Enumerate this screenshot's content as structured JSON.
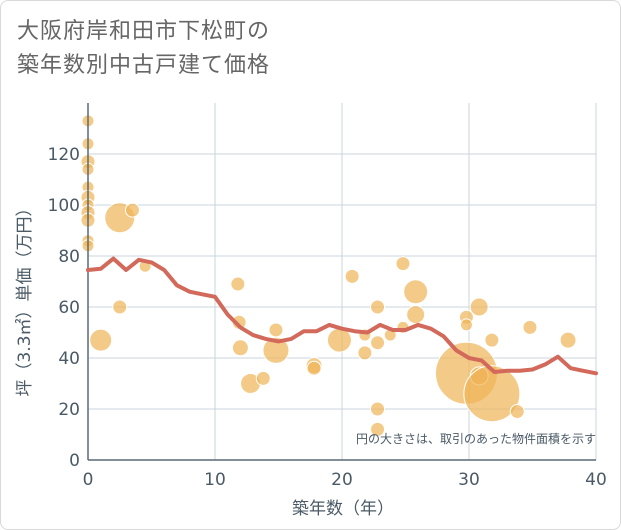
{
  "title_lines": [
    "大阪府岸和田市下松町の",
    "築年数別中古戸建て価格"
  ],
  "chart_data": {
    "type": "scatter",
    "xlabel": "築年数（年）",
    "ylabel": "坪（3.3㎡）単価（万円）",
    "xlim": [
      0,
      40
    ],
    "ylim": [
      0,
      140
    ],
    "xticks": [
      0,
      10,
      20,
      30,
      40
    ],
    "yticks": [
      0,
      20,
      40,
      60,
      80,
      100,
      120
    ],
    "grid": true,
    "note": "円の大きさは、取引のあった物件面積を示す",
    "colors": {
      "bubble": "#f0b455",
      "bubble_fill_opacity": 0.7,
      "line": "#d2695a",
      "grid": "#c8d4dc",
      "axis_text": "#4a5a66"
    },
    "series": [
      {
        "type": "bubble",
        "points": [
          {
            "x": 0,
            "y": 133,
            "r": 6
          },
          {
            "x": 0,
            "y": 124,
            "r": 6
          },
          {
            "x": 0,
            "y": 117,
            "r": 7
          },
          {
            "x": 0,
            "y": 114,
            "r": 6
          },
          {
            "x": 0,
            "y": 107,
            "r": 6
          },
          {
            "x": 0,
            "y": 103,
            "r": 7
          },
          {
            "x": 0,
            "y": 100,
            "r": 6
          },
          {
            "x": 0,
            "y": 97,
            "r": 7
          },
          {
            "x": 0,
            "y": 94,
            "r": 7
          },
          {
            "x": 0,
            "y": 86,
            "r": 6
          },
          {
            "x": 0,
            "y": 84,
            "r": 6
          },
          {
            "x": 1,
            "y": 47,
            "r": 11
          },
          {
            "x": 2.5,
            "y": 95,
            "r": 15
          },
          {
            "x": 3.5,
            "y": 98,
            "r": 7
          },
          {
            "x": 2.5,
            "y": 60,
            "r": 7
          },
          {
            "x": 4.5,
            "y": 76,
            "r": 6
          },
          {
            "x": 11.8,
            "y": 69,
            "r": 7
          },
          {
            "x": 11.9,
            "y": 54,
            "r": 7
          },
          {
            "x": 12,
            "y": 44,
            "r": 8
          },
          {
            "x": 12.8,
            "y": 30,
            "r": 10
          },
          {
            "x": 13.8,
            "y": 32,
            "r": 7
          },
          {
            "x": 14.8,
            "y": 51,
            "r": 7
          },
          {
            "x": 14.8,
            "y": 43,
            "r": 13
          },
          {
            "x": 17.8,
            "y": 37,
            "r": 8
          },
          {
            "x": 17.8,
            "y": 36,
            "r": 7
          },
          {
            "x": 19.8,
            "y": 47,
            "r": 12
          },
          {
            "x": 20.8,
            "y": 72,
            "r": 7
          },
          {
            "x": 21.8,
            "y": 49,
            "r": 6
          },
          {
            "x": 21.8,
            "y": 42,
            "r": 7
          },
          {
            "x": 22.8,
            "y": 60,
            "r": 7
          },
          {
            "x": 22.8,
            "y": 46,
            "r": 7
          },
          {
            "x": 22.8,
            "y": 20,
            "r": 7
          },
          {
            "x": 22.8,
            "y": 12,
            "r": 7
          },
          {
            "x": 23.8,
            "y": 49,
            "r": 6
          },
          {
            "x": 24.8,
            "y": 77,
            "r": 7
          },
          {
            "x": 24.8,
            "y": 52,
            "r": 6
          },
          {
            "x": 25.8,
            "y": 66,
            "r": 12
          },
          {
            "x": 25.8,
            "y": 57,
            "r": 9
          },
          {
            "x": 29.8,
            "y": 56,
            "r": 7
          },
          {
            "x": 29.8,
            "y": 53,
            "r": 6
          },
          {
            "x": 29.8,
            "y": 34,
            "r": 31
          },
          {
            "x": 30.8,
            "y": 60,
            "r": 9
          },
          {
            "x": 30.8,
            "y": 33,
            "r": 9
          },
          {
            "x": 31.8,
            "y": 47,
            "r": 7
          },
          {
            "x": 31.8,
            "y": 26,
            "r": 28
          },
          {
            "x": 33.8,
            "y": 19,
            "r": 7
          },
          {
            "x": 34.8,
            "y": 52,
            "r": 7
          },
          {
            "x": 37.8,
            "y": 47,
            "r": 8
          }
        ]
      },
      {
        "type": "line",
        "x": [
          0,
          1,
          2,
          3,
          4,
          5,
          6,
          7,
          8,
          9,
          10,
          11,
          12,
          13,
          14,
          15,
          16,
          17,
          18,
          19,
          20,
          21,
          22,
          23,
          24,
          25,
          26,
          27,
          28,
          29,
          30,
          31,
          32,
          33,
          34,
          35,
          36,
          37,
          38,
          39,
          40
        ],
        "y": [
          74.5,
          75,
          79,
          74.5,
          78.5,
          77.5,
          74.5,
          68.5,
          66,
          65,
          64,
          57,
          52,
          49,
          47.5,
          46.5,
          47.5,
          50.5,
          50.5,
          53,
          51.5,
          50.5,
          50,
          53,
          51,
          51,
          53,
          51.5,
          48.5,
          43,
          40,
          39,
          34.5,
          35,
          35,
          35.5,
          37.5,
          40.5,
          36,
          35,
          34
        ]
      }
    ]
  }
}
